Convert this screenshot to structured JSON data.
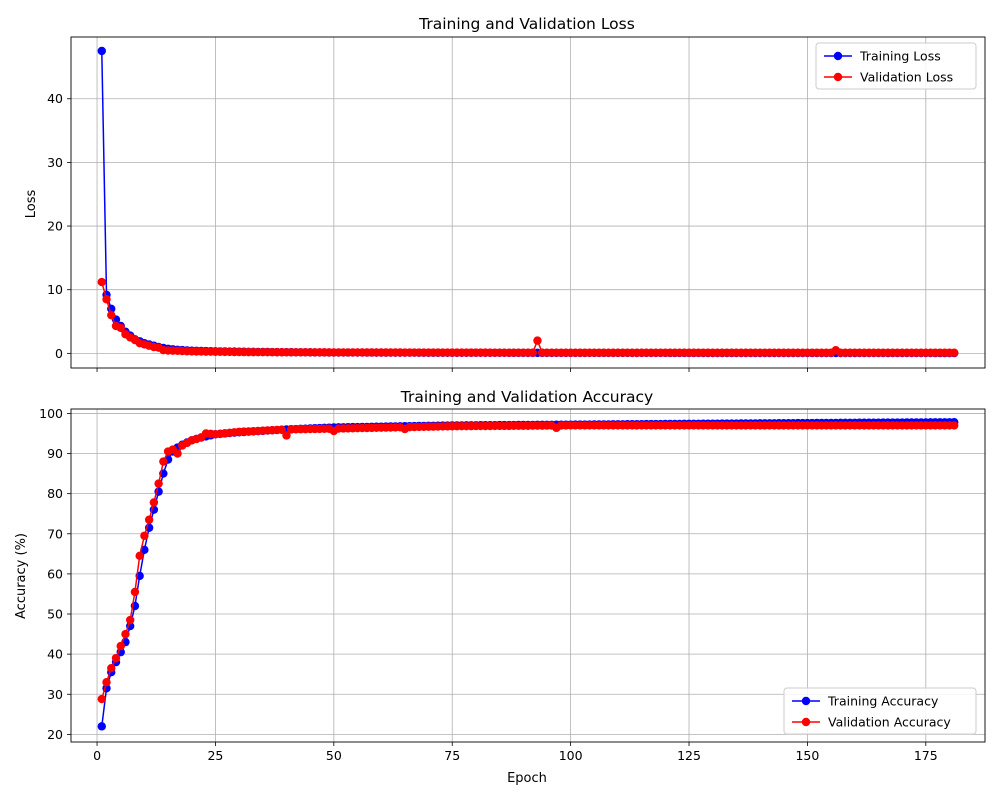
{
  "chart_data": [
    {
      "type": "line",
      "title": "Training and Validation Loss",
      "xlabel": "",
      "ylabel": "Loss",
      "xlim": [
        -5.5,
        187.5
      ],
      "ylim": [
        -2.3,
        49.7
      ],
      "xticks": [
        0,
        25,
        50,
        75,
        100,
        125,
        150,
        175
      ],
      "xtick_labels_visible": false,
      "yticks": [
        0,
        10,
        20,
        30,
        40
      ],
      "grid": true,
      "legend": "top-right",
      "series": [
        {
          "name": "Training Loss",
          "color": "#0000ff",
          "marker": "o",
          "keypoints": [
            [
              1,
              47.5
            ],
            [
              2,
              9.2
            ],
            [
              3,
              7.0
            ],
            [
              4,
              5.3
            ],
            [
              5,
              4.3
            ],
            [
              6,
              3.4
            ],
            [
              7,
              2.8
            ],
            [
              8,
              2.2
            ],
            [
              9,
              1.9
            ],
            [
              10,
              1.6
            ],
            [
              11,
              1.4
            ],
            [
              12,
              1.2
            ],
            [
              13,
              1.0
            ],
            [
              14,
              0.85
            ],
            [
              15,
              0.72
            ],
            [
              17,
              0.55
            ],
            [
              20,
              0.42
            ],
            [
              25,
              0.32
            ],
            [
              30,
              0.26
            ],
            [
              40,
              0.18
            ],
            [
              50,
              0.13
            ],
            [
              75,
              0.09
            ],
            [
              100,
              0.07
            ],
            [
              125,
              0.06
            ],
            [
              150,
              0.05
            ],
            [
              181,
              0.04
            ]
          ]
        },
        {
          "name": "Validation Loss",
          "color": "#ff0000",
          "marker": "o",
          "keypoints": [
            [
              1,
              11.2
            ],
            [
              2,
              8.5
            ],
            [
              3,
              6.0
            ],
            [
              4,
              4.3
            ],
            [
              5,
              4.0
            ],
            [
              6,
              3.0
            ],
            [
              7,
              2.5
            ],
            [
              8,
              2.1
            ],
            [
              9,
              1.6
            ],
            [
              10,
              1.4
            ],
            [
              11,
              1.2
            ],
            [
              12,
              1.0
            ],
            [
              13,
              0.9
            ],
            [
              14,
              0.5
            ],
            [
              15,
              0.45
            ],
            [
              17,
              0.4
            ],
            [
              20,
              0.3
            ],
            [
              25,
              0.25
            ],
            [
              30,
              0.2
            ],
            [
              40,
              0.17
            ],
            [
              50,
              0.15
            ],
            [
              75,
              0.12
            ],
            [
              100,
              0.1
            ],
            [
              125,
              0.1
            ],
            [
              150,
              0.1
            ],
            [
              181,
              0.1
            ]
          ],
          "spikes": [
            [
              93,
              2.0
            ],
            [
              156,
              0.5
            ]
          ]
        }
      ]
    },
    {
      "type": "line",
      "title": "Training and Validation Accuracy",
      "xlabel": "Epoch",
      "ylabel": "Accuracy (%)",
      "xlim": [
        -5.5,
        187.5
      ],
      "ylim": [
        18.1,
        101.1
      ],
      "xticks": [
        0,
        25,
        50,
        75,
        100,
        125,
        150,
        175
      ],
      "yticks": [
        20,
        30,
        40,
        50,
        60,
        70,
        80,
        90,
        100
      ],
      "grid": true,
      "legend": "bottom-right",
      "series": [
        {
          "name": "Training Accuracy",
          "color": "#0000ff",
          "marker": "o",
          "keypoints": [
            [
              1,
              22.0
            ],
            [
              2,
              31.5
            ],
            [
              3,
              35.5
            ],
            [
              4,
              38.0
            ],
            [
              5,
              40.5
            ],
            [
              6,
              43.0
            ],
            [
              7,
              47.0
            ],
            [
              8,
              52.0
            ],
            [
              9,
              59.5
            ],
            [
              10,
              66.0
            ],
            [
              11,
              71.5
            ],
            [
              12,
              76.0
            ],
            [
              13,
              80.5
            ],
            [
              14,
              85.0
            ],
            [
              15,
              88.5
            ],
            [
              16,
              90.5
            ],
            [
              17,
              91.5
            ],
            [
              18,
              92.2
            ],
            [
              20,
              93.3
            ],
            [
              22,
              94.0
            ],
            [
              25,
              94.8
            ],
            [
              30,
              95.3
            ],
            [
              40,
              96.0
            ],
            [
              50,
              96.5
            ],
            [
              75,
              97.0
            ],
            [
              100,
              97.2
            ],
            [
              125,
              97.4
            ],
            [
              150,
              97.6
            ],
            [
              181,
              97.8
            ]
          ]
        },
        {
          "name": "Validation Accuracy",
          "color": "#ff0000",
          "marker": "o",
          "keypoints": [
            [
              1,
              28.8
            ],
            [
              2,
              33.0
            ],
            [
              3,
              36.5
            ],
            [
              4,
              39.0
            ],
            [
              5,
              42.0
            ],
            [
              6,
              45.0
            ],
            [
              7,
              48.5
            ],
            [
              8,
              55.5
            ],
            [
              9,
              64.5
            ],
            [
              10,
              69.5
            ],
            [
              11,
              73.5
            ],
            [
              12,
              77.8
            ],
            [
              13,
              82.5
            ],
            [
              14,
              88.0
            ],
            [
              15,
              90.5
            ],
            [
              16,
              91.0
            ],
            [
              17,
              90.0
            ],
            [
              18,
              92.0
            ],
            [
              20,
              93.3
            ],
            [
              22,
              94.0
            ],
            [
              23,
              95.0
            ],
            [
              25,
              94.8
            ],
            [
              30,
              95.4
            ],
            [
              40,
              96.0
            ],
            [
              50,
              96.2
            ],
            [
              75,
              96.8
            ],
            [
              100,
              97.0
            ],
            [
              125,
              97.0
            ],
            [
              150,
              97.0
            ],
            [
              181,
              97.0
            ]
          ],
          "dips": [
            [
              40,
              94.5
            ],
            [
              50,
              95.6
            ],
            [
              65,
              96.1
            ],
            [
              97,
              96.4
            ]
          ]
        }
      ]
    }
  ]
}
